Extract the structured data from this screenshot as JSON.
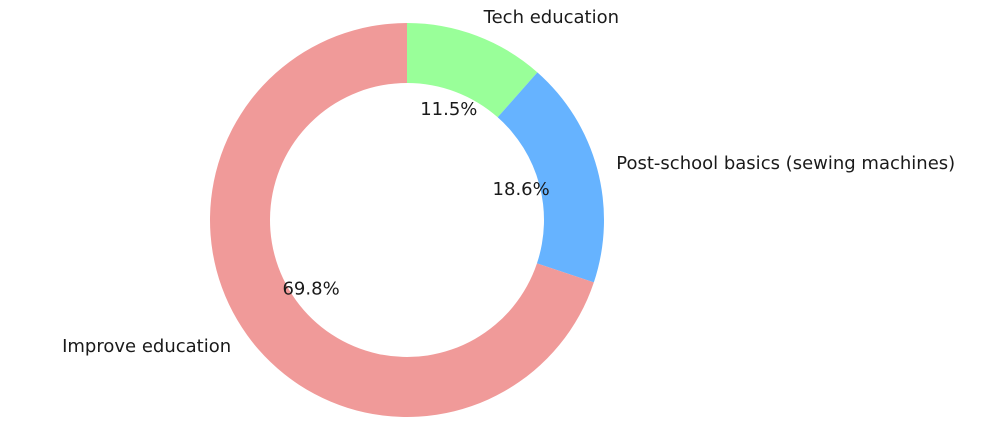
{
  "chart_data": {
    "type": "pie",
    "variant": "donut",
    "title": "",
    "start_angle_deg": 90,
    "direction": "clockwise",
    "slices": [
      {
        "label": "Tech education",
        "value": 11.5,
        "pct_label": "11.5%",
        "color": "#99ff99"
      },
      {
        "label": "Post-school basics (sewing machines)",
        "value": 18.6,
        "pct_label": "18.6%",
        "color": "#66b3ff"
      },
      {
        "label": "Improve education",
        "value": 69.8,
        "pct_label": "69.8%",
        "color": "#f09a99"
      }
    ]
  }
}
